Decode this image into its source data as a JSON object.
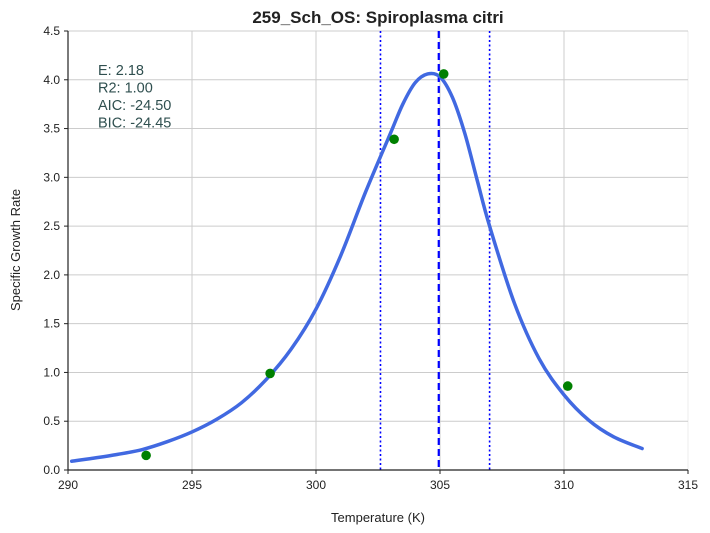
{
  "chart_data": {
    "type": "scatter",
    "title": "259_Sch_OS: Spiroplasma citri",
    "xlabel": "Temperature (K)",
    "ylabel": "Specific Growth Rate",
    "xlim": [
      290,
      315
    ],
    "ylim": [
      0,
      4.5
    ],
    "xticks": [
      "290",
      "295",
      "300",
      "305",
      "310",
      "315"
    ],
    "yticks": [
      "0.0",
      "0.5",
      "1.0",
      "1.5",
      "2.0",
      "2.5",
      "3.0",
      "3.5",
      "4.0",
      "4.5"
    ],
    "grid": true,
    "annotations": [
      "E:  2.18",
      "R2:  1.00",
      "AIC: -24.50",
      "BIC: -24.45"
    ],
    "points": {
      "color": "#008000",
      "x": [
        293.15,
        298.15,
        303.15,
        305.15,
        310.15
      ],
      "y": [
        0.15,
        0.99,
        3.39,
        4.06,
        0.86
      ]
    },
    "fit_curve": {
      "color": "#4169e1",
      "x": [
        290.15,
        291,
        292,
        293,
        294,
        295,
        296,
        297,
        298,
        299,
        300,
        301,
        302,
        303,
        303.5,
        304,
        304.5,
        305,
        305.5,
        306,
        306.5,
        307,
        308,
        309,
        310,
        311,
        312,
        313.15
      ],
      "y": [
        0.09,
        0.12,
        0.16,
        0.21,
        0.29,
        0.39,
        0.52,
        0.69,
        0.93,
        1.24,
        1.65,
        2.2,
        2.85,
        3.45,
        3.75,
        3.97,
        4.06,
        4.03,
        3.82,
        3.45,
        2.97,
        2.5,
        1.71,
        1.14,
        0.77,
        0.51,
        0.34,
        0.22
      ]
    },
    "vlines": [
      {
        "x": 302.6,
        "style": "dotted",
        "color": "#0000ff"
      },
      {
        "x": 304.95,
        "style": "dashed",
        "color": "#0000ff"
      },
      {
        "x": 307.0,
        "style": "dotted",
        "color": "#0000ff"
      }
    ]
  }
}
